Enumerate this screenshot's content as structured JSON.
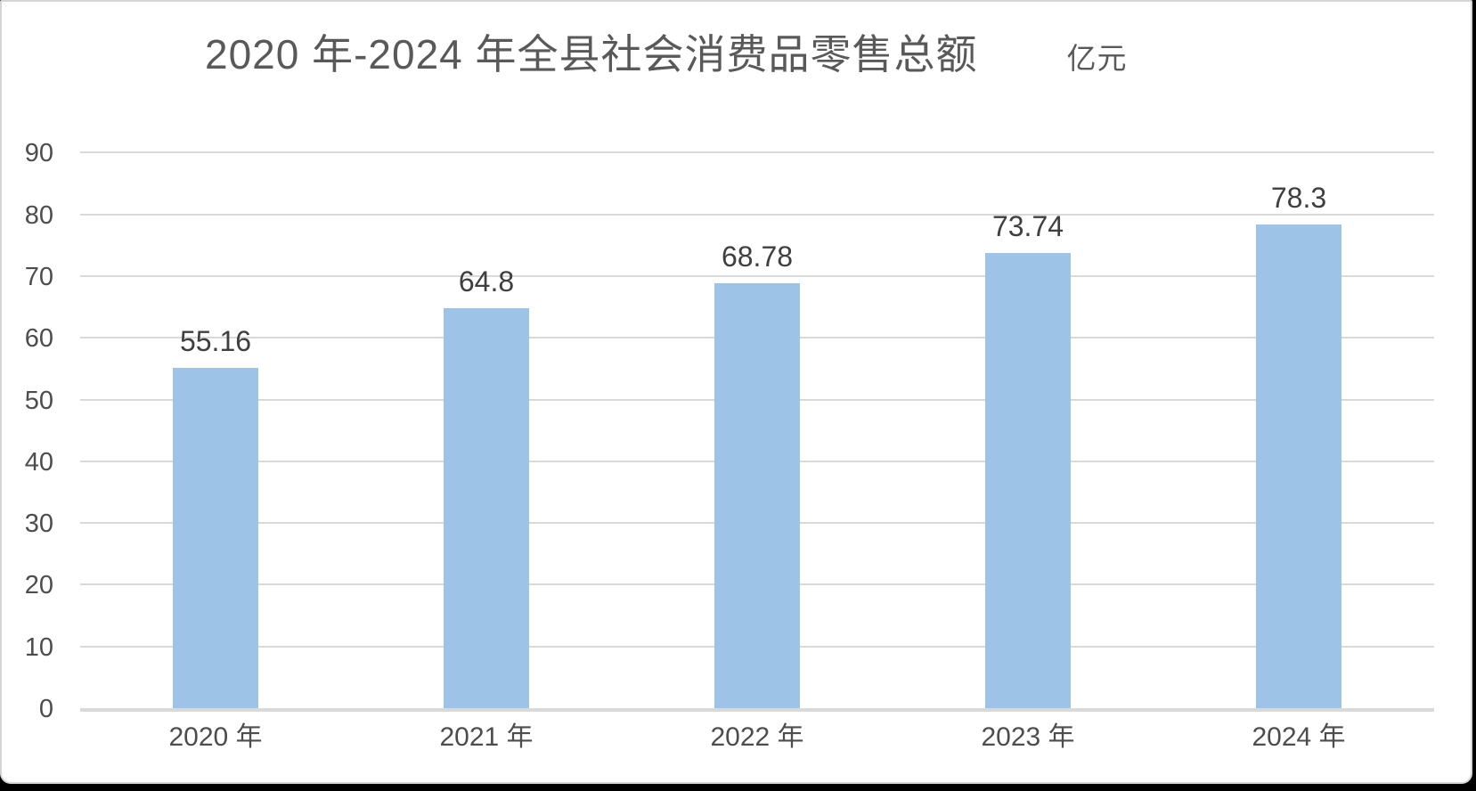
{
  "frame": {
    "card_background": "#ffffff",
    "card_border_color": "#d5d5d5",
    "outer_edge_color": "#000000"
  },
  "chart_data": {
    "type": "bar",
    "title": "2020 年-2024 年全县社会消费品零售总额",
    "unit_label": "亿元",
    "categories": [
      "2020 年",
      "2021 年",
      "2022 年",
      "2023 年",
      "2024 年"
    ],
    "values": [
      55.16,
      64.8,
      68.78,
      73.74,
      78.3
    ],
    "data_labels": [
      "55.16",
      "64.8",
      "68.78",
      "73.74",
      "78.3"
    ],
    "xlabel": "",
    "ylabel": "",
    "ylim": [
      0,
      90
    ],
    "yticks": [
      0,
      10,
      20,
      30,
      40,
      50,
      60,
      70,
      80,
      90
    ],
    "grid": true,
    "legend": "none",
    "bar_color": "#9dc3e6",
    "gridline_color": "#d9d9d9",
    "axis_line_color": "#d9d9d9",
    "title_color": "#595959",
    "data_label_color": "#3f3f3f",
    "tick_label_color": "#4d4d4d"
  }
}
